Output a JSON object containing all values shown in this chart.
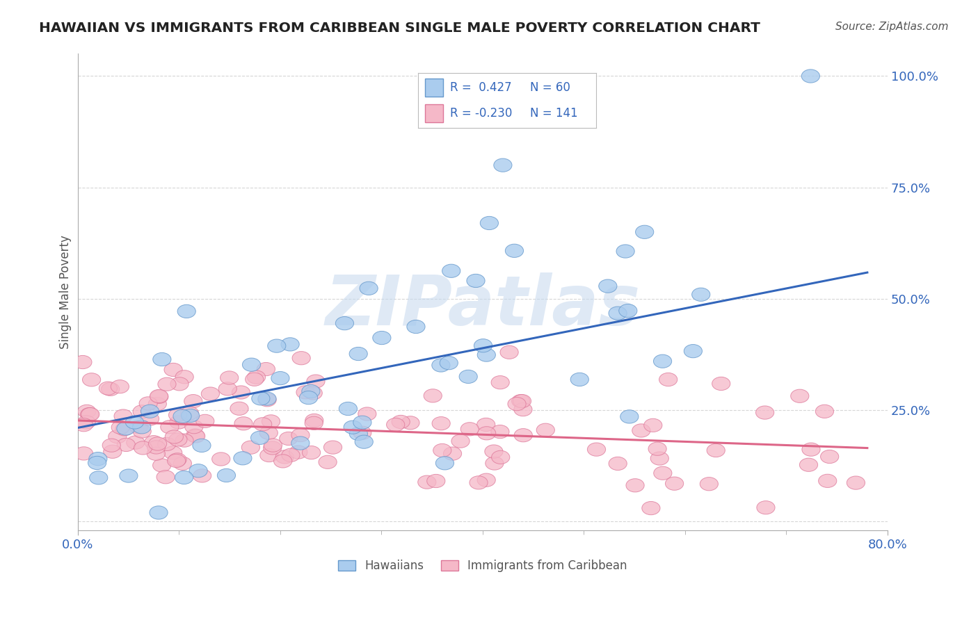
{
  "title": "HAWAIIAN VS IMMIGRANTS FROM CARIBBEAN SINGLE MALE POVERTY CORRELATION CHART",
  "source_text": "Source: ZipAtlas.com",
  "ylabel": "Single Male Poverty",
  "xlim": [
    0.0,
    0.8
  ],
  "ylim": [
    -0.02,
    1.05
  ],
  "yticks": [
    0.0,
    0.25,
    0.5,
    0.75,
    1.0
  ],
  "ytick_labels": [
    "",
    "25.0%",
    "50.0%",
    "75.0%",
    "100.0%"
  ],
  "xtick_labels": [
    "0.0%",
    "80.0%"
  ],
  "hawaiian_color": "#aaccee",
  "hawaiian_edge_color": "#6699cc",
  "caribbean_color": "#f5b8c8",
  "caribbean_edge_color": "#dd7799",
  "hawaiian_line_color": "#3366bb",
  "caribbean_line_color": "#dd6688",
  "R_hawaiian": 0.427,
  "N_hawaiian": 60,
  "R_caribbean": -0.23,
  "N_caribbean": 141,
  "watermark": "ZIPatlas",
  "background_color": "#ffffff",
  "grid_color": "#cccccc",
  "legend_text_color": "#333333",
  "legend_num_color": "#3366bb",
  "title_color": "#222222",
  "source_color": "#555555",
  "ylabel_color": "#555555",
  "tick_color": "#3366bb"
}
